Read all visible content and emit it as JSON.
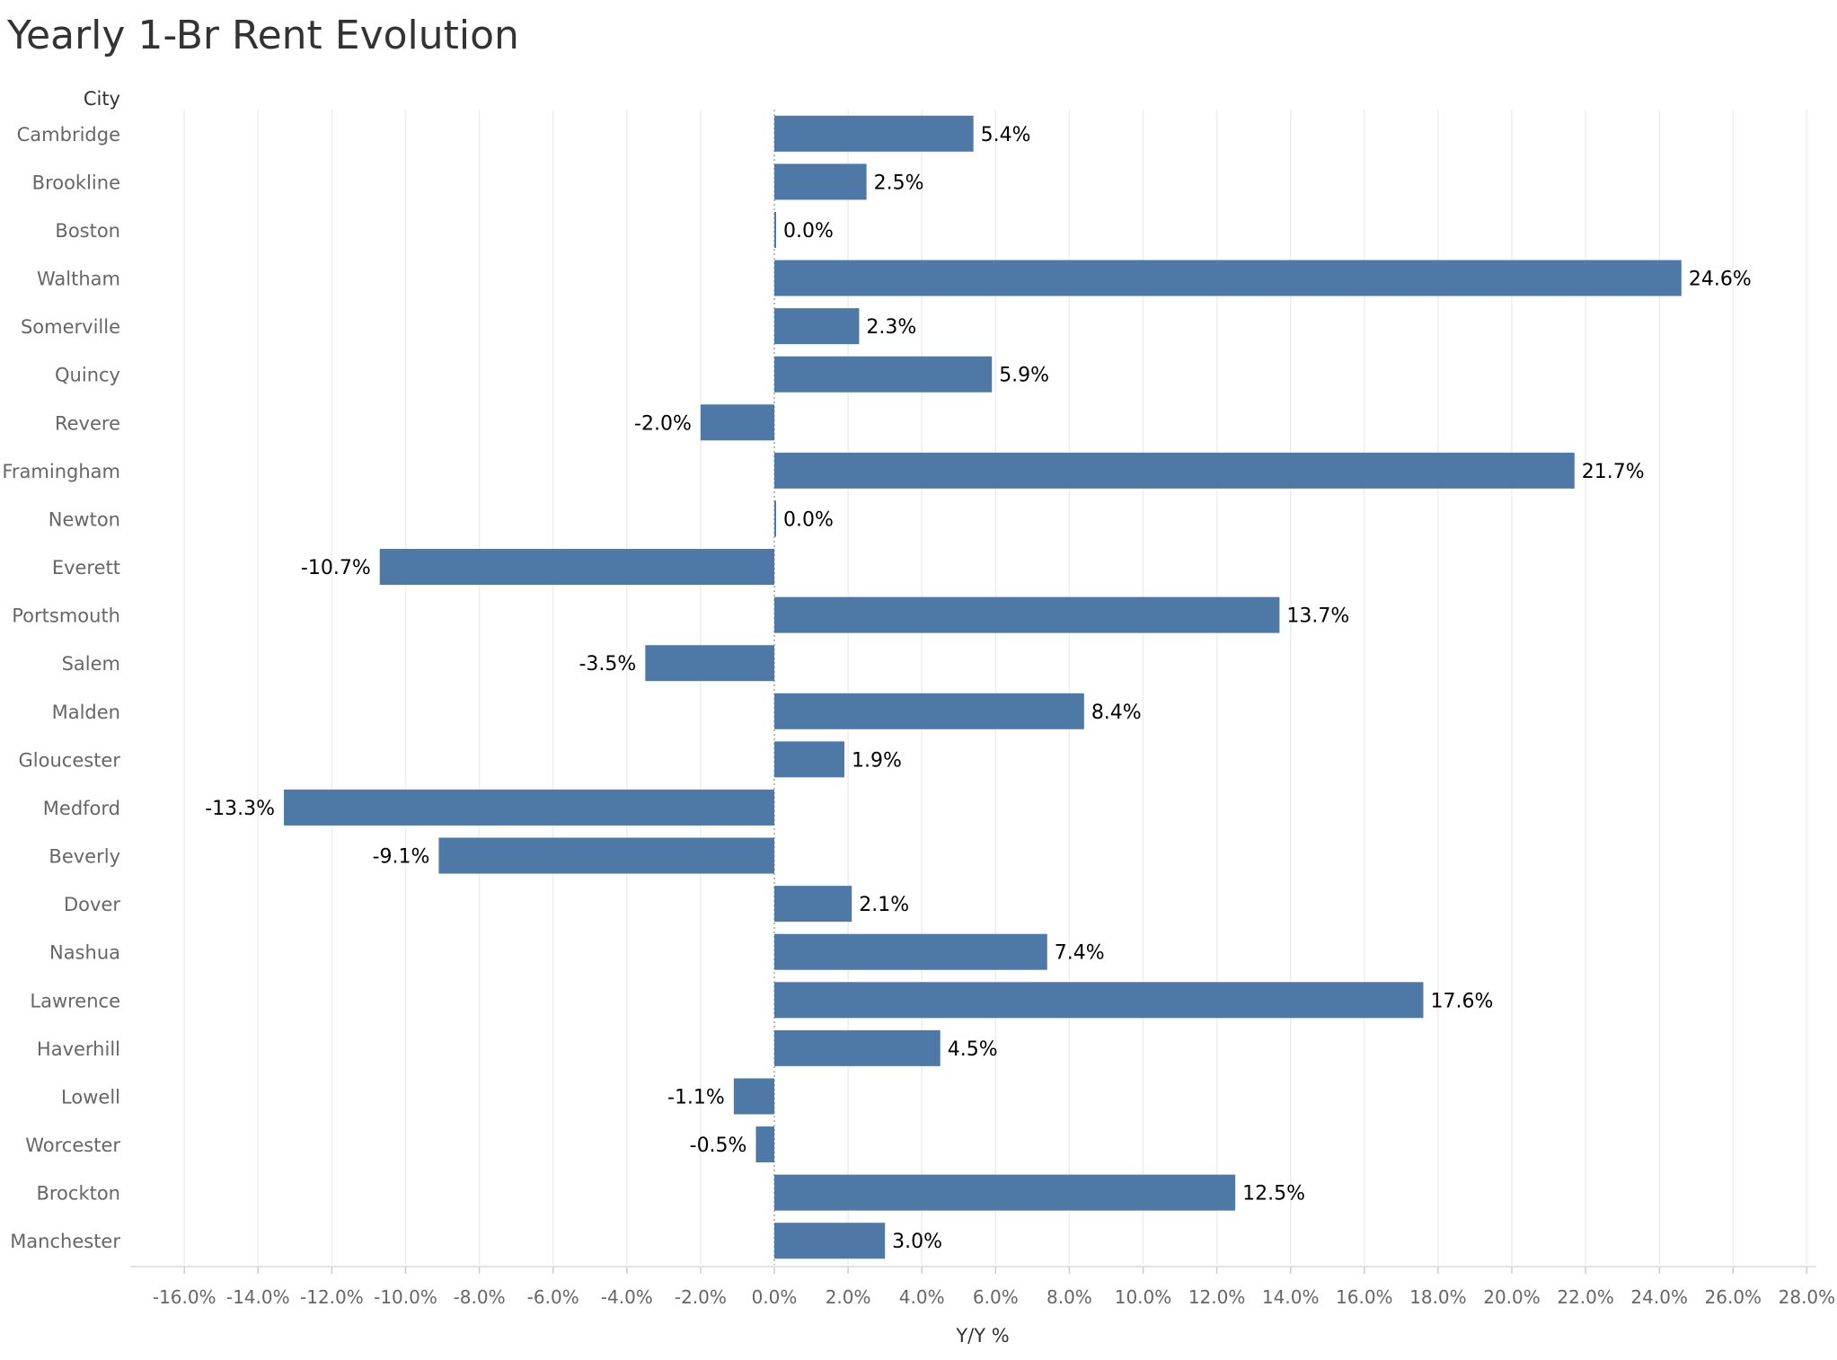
{
  "chart_data": {
    "type": "bar",
    "orientation": "horizontal",
    "title": "Yearly 1-Br Rent Evolution",
    "row_header": "City",
    "xlabel": "Y/Y %",
    "xlim": [
      -16,
      28
    ],
    "xticks": [
      -16,
      -14,
      -12,
      -10,
      -8,
      -6,
      -4,
      -2,
      0,
      2,
      4,
      6,
      8,
      10,
      12,
      14,
      16,
      18,
      20,
      22,
      24,
      26,
      28
    ],
    "tick_format": "0.0%",
    "grid": "vertical",
    "bar_color": "#4e79a7",
    "categories": [
      "Cambridge",
      "Brookline",
      "Boston",
      "Waltham",
      "Somerville",
      "Quincy",
      "Revere",
      "Framingham",
      "Newton",
      "Everett",
      "Portsmouth",
      "Salem",
      "Malden",
      "Gloucester",
      "Medford",
      "Beverly",
      "Dover",
      "Nashua",
      "Lawrence",
      "Haverhill",
      "Lowell",
      "Worcester",
      "Brockton",
      "Manchester"
    ],
    "values": [
      5.4,
      2.5,
      0.0,
      24.6,
      2.3,
      5.9,
      -2.0,
      21.7,
      0.0,
      -10.7,
      13.7,
      -3.5,
      8.4,
      1.9,
      -13.3,
      -9.1,
      2.1,
      7.4,
      17.6,
      4.5,
      -1.1,
      -0.5,
      12.5,
      3.0
    ],
    "data_labels": [
      "5.4%",
      "2.5%",
      "0.0%",
      "24.6%",
      "2.3%",
      "5.9%",
      "-2.0%",
      "21.7%",
      "0.0%",
      "-10.7%",
      "13.7%",
      "-3.5%",
      "8.4%",
      "1.9%",
      "-13.3%",
      "-9.1%",
      "2.1%",
      "7.4%",
      "17.6%",
      "4.5%",
      "-1.1%",
      "-0.5%",
      "12.5%",
      "3.0%"
    ]
  }
}
